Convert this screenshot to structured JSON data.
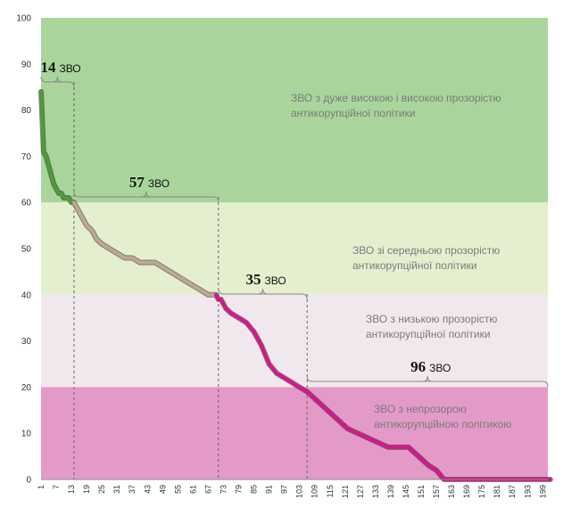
{
  "chart_data": {
    "type": "line",
    "title": "",
    "xlabel": "",
    "ylabel": "",
    "ylim": [
      0,
      100
    ],
    "xlim": [
      1,
      201
    ],
    "y_ticks": [
      0,
      10,
      20,
      30,
      40,
      50,
      60,
      70,
      80,
      90,
      100
    ],
    "x_ticks": [
      1,
      7,
      13,
      19,
      25,
      31,
      37,
      43,
      49,
      55,
      61,
      67,
      73,
      79,
      85,
      91,
      97,
      103,
      109,
      115,
      121,
      127,
      133,
      139,
      145,
      151,
      157,
      163,
      169,
      175,
      181,
      187,
      193,
      199
    ],
    "grid": false,
    "zones": [
      {
        "name": "very-high",
        "ymin": 60,
        "ymax": 100,
        "color": "#a9d59c",
        "label": "ЗВО з дуже високою і високою прозорістю антикорупційної політики"
      },
      {
        "name": "medium",
        "ymin": 40,
        "ymax": 60,
        "color": "#e4efd0",
        "label": "ЗВО зі середньою прозорістю антикорупційної політики"
      },
      {
        "name": "low",
        "ymin": 20,
        "ymax": 40,
        "color": "#f1e8ee",
        "label": "ЗВО з низькою прозорістю антикорупційної політики"
      },
      {
        "name": "opaque",
        "ymin": 0,
        "ymax": 20,
        "color": "#e39ac8",
        "label": "ЗВО з непрозорою антикорупційною політикою"
      }
    ],
    "counts": [
      {
        "value": "14",
        "unit": "ЗВО",
        "from": 1,
        "to": 14
      },
      {
        "value": "57",
        "unit": "ЗВО",
        "from": 14,
        "to": 71
      },
      {
        "value": "35",
        "unit": "ЗВО",
        "from": 71,
        "to": 106
      },
      {
        "value": "96",
        "unit": "ЗВО",
        "from": 106,
        "to": 202
      }
    ],
    "series": [
      {
        "x": [
          1,
          2,
          3,
          4,
          5,
          6,
          7,
          8,
          9,
          10,
          11,
          12,
          13,
          14,
          15,
          17,
          19,
          21,
          23,
          25,
          28,
          31,
          34,
          37,
          40,
          43,
          46,
          49,
          52,
          55,
          58,
          61,
          64,
          67,
          70,
          71,
          72,
          74,
          76,
          79,
          82,
          85,
          88,
          91,
          94,
          97,
          100,
          103,
          106,
          110,
          114,
          118,
          122,
          126,
          130,
          134,
          138,
          142,
          146,
          150,
          154,
          157,
          160,
          165,
          170,
          180,
          190,
          202
        ],
        "values": [
          84,
          71,
          70,
          68,
          66,
          64,
          63,
          62,
          62,
          61,
          61,
          61,
          60,
          60,
          59,
          57,
          55,
          54,
          52,
          51,
          50,
          49,
          48,
          48,
          47,
          47,
          47,
          46,
          45,
          44,
          43,
          42,
          41,
          40,
          40,
          39,
          39,
          37,
          36,
          35,
          34,
          32,
          29,
          25,
          23,
          22,
          21,
          20,
          19,
          17,
          15,
          13,
          11,
          10,
          9,
          8,
          7,
          7,
          7,
          5,
          3,
          2,
          0,
          0,
          0,
          0,
          0,
          0
        ]
      }
    ]
  }
}
